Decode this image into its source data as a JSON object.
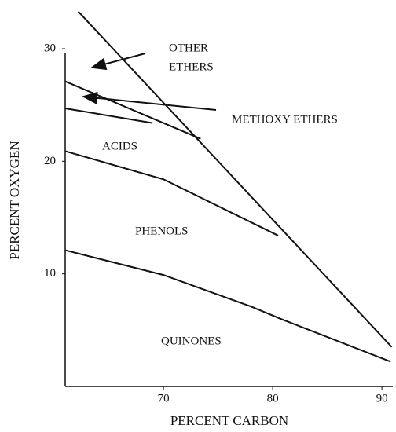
{
  "chart_data": {
    "type": "line",
    "xlabel": "PERCENT CARBON",
    "ylabel": "PERCENT OXYGEN",
    "xlim": [
      61,
      91
    ],
    "ylim": [
      0,
      30
    ],
    "xticks": [
      70,
      80,
      90
    ],
    "yticks": [
      10,
      20,
      30
    ],
    "color": "#111111",
    "annotations": [
      "OTHER",
      "ETHERS",
      "METHOXY ETHERS",
      "ACIDS",
      "PHENOLS",
      "QUINONES"
    ],
    "series": [
      {
        "x": [
          62.2,
          90.9
        ],
        "values": [
          33.3,
          3.5
        ]
      },
      {
        "x": [
          61,
          73.4
        ],
        "values": [
          27.1,
          22.0
        ]
      },
      {
        "x": [
          61,
          69
        ],
        "values": [
          24.7,
          23.4
        ]
      },
      {
        "x": [
          61,
          70,
          80.5
        ],
        "values": [
          20.9,
          18.4,
          13.4
        ]
      },
      {
        "x": [
          61,
          70,
          78,
          81,
          90.8
        ],
        "values": [
          12.1,
          9.9,
          7.1,
          5.9,
          2.2
        ]
      }
    ]
  }
}
